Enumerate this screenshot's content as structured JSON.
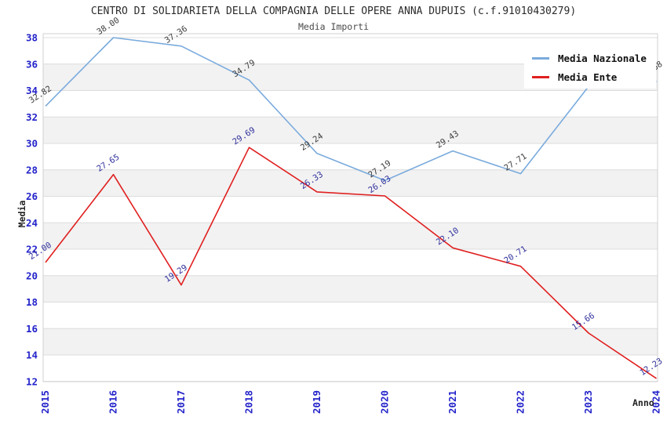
{
  "chart_data": {
    "type": "line",
    "title": "CENTRO DI SOLIDARIETA DELLA COMPAGNIA DELLE OPERE ANNA DUPUIS (c.f.91010430279)",
    "subtitle": "Media Importi",
    "xlabel": "Anno",
    "ylabel": "Media",
    "categories": [
      "2015",
      "2016",
      "2017",
      "2018",
      "2019",
      "2020",
      "2021",
      "2022",
      "2023",
      "2024"
    ],
    "series": [
      {
        "name": "Media Nazionale",
        "color": "#7aabdd",
        "label_color": "#3c3c3c",
        "values": [
          32.82,
          38.0,
          37.36,
          34.79,
          29.24,
          27.19,
          29.43,
          27.71,
          34.3,
          34.68
        ],
        "labels": [
          "32.82",
          "38.00",
          "37.36",
          "34.79",
          "29.24",
          "27.19",
          "29.43",
          "27.71",
          "",
          "34.68"
        ]
      },
      {
        "name": "Media Ente",
        "color": "#e01f1f",
        "label_color": "#30309d",
        "values": [
          21.0,
          27.65,
          19.29,
          29.69,
          26.33,
          26.03,
          22.1,
          20.71,
          15.66,
          12.23
        ],
        "labels": [
          "21.00",
          "27.65",
          "19.29",
          "29.69",
          "26.33",
          "26.03",
          "22.10",
          "20.71",
          "15.66",
          "12.23"
        ]
      }
    ],
    "ylim": [
      12,
      38
    ],
    "ytick_step": 2,
    "grid": true,
    "band_fill_between_alternate_gridlines": true,
    "legend_position": "top-right",
    "colors": {
      "grid": "#dcdcdc",
      "band": "#f2f2f2",
      "plot_border": "#d0d0d0",
      "tick_label": "#2323cb",
      "axis_title": "#222222"
    }
  }
}
